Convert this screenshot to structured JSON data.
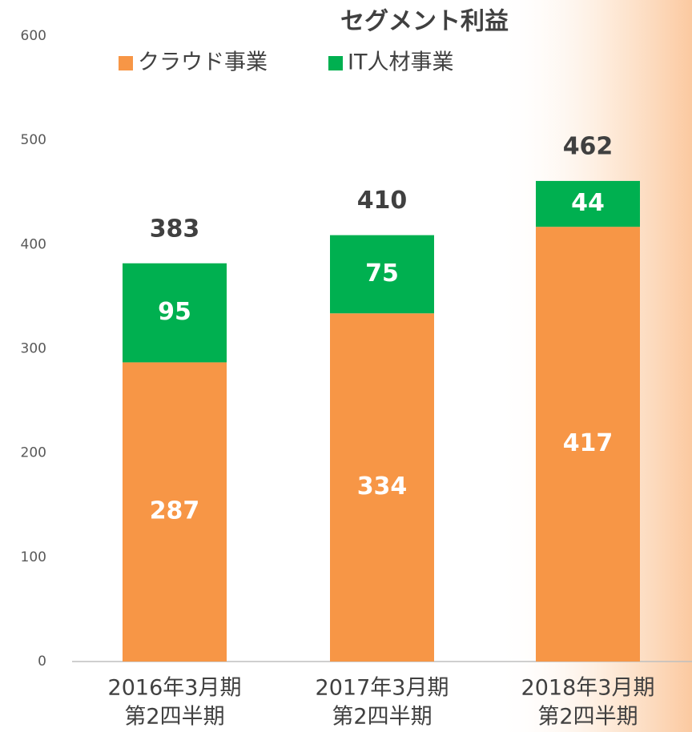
{
  "chart_data": {
    "type": "stacked-bar",
    "title": "セグメント利益",
    "categories": [
      [
        "2016年3月期",
        "第2四半期"
      ],
      [
        "2017年3月期",
        "第2四半期"
      ],
      [
        "2018年3月期",
        "第2四半期"
      ]
    ],
    "series": [
      {
        "name": "クラウド事業",
        "color": "#f79646",
        "values": [
          287,
          334,
          417
        ]
      },
      {
        "name": "IT人材事業",
        "color": "#00b050",
        "values": [
          95,
          75,
          44
        ]
      }
    ],
    "totals": [
      383,
      410,
      462
    ],
    "ylim": [
      0,
      600
    ],
    "yticks": [
      0,
      100,
      200,
      300,
      400,
      500,
      600
    ],
    "legend": "top"
  }
}
